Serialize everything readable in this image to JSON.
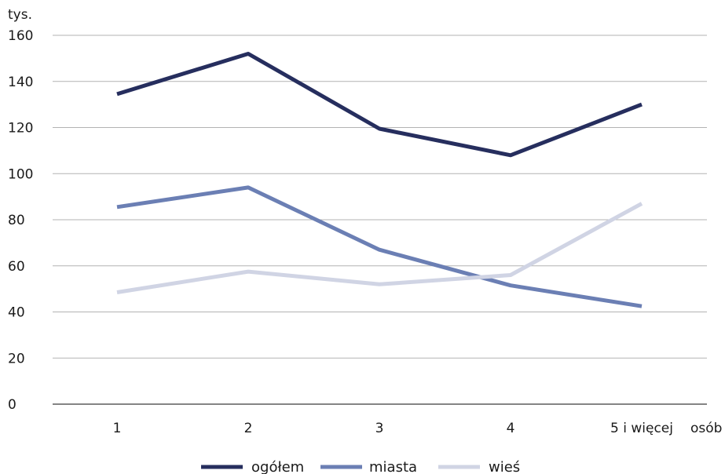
{
  "chart_data": {
    "type": "line",
    "y_unit_label": "tys.",
    "x_unit_label": "osób",
    "categories": [
      "1",
      "2",
      "3",
      "4",
      "5 i więcej"
    ],
    "ylim": [
      0,
      160
    ],
    "yticks": [
      0,
      20,
      40,
      60,
      80,
      100,
      120,
      140,
      160
    ],
    "grid": true,
    "legend_position": "bottom",
    "series": [
      {
        "name": "ogółem",
        "color": "#262e5e",
        "values": [
          134.5,
          152,
          119.5,
          108,
          130
        ]
      },
      {
        "name": "miasta",
        "color": "#6b7fb4",
        "values": [
          85.5,
          94,
          67,
          51.5,
          42.5
        ]
      },
      {
        "name": "wieś",
        "color": "#d0d4e4",
        "values": [
          48.5,
          57.5,
          52,
          56,
          87
        ]
      }
    ]
  }
}
